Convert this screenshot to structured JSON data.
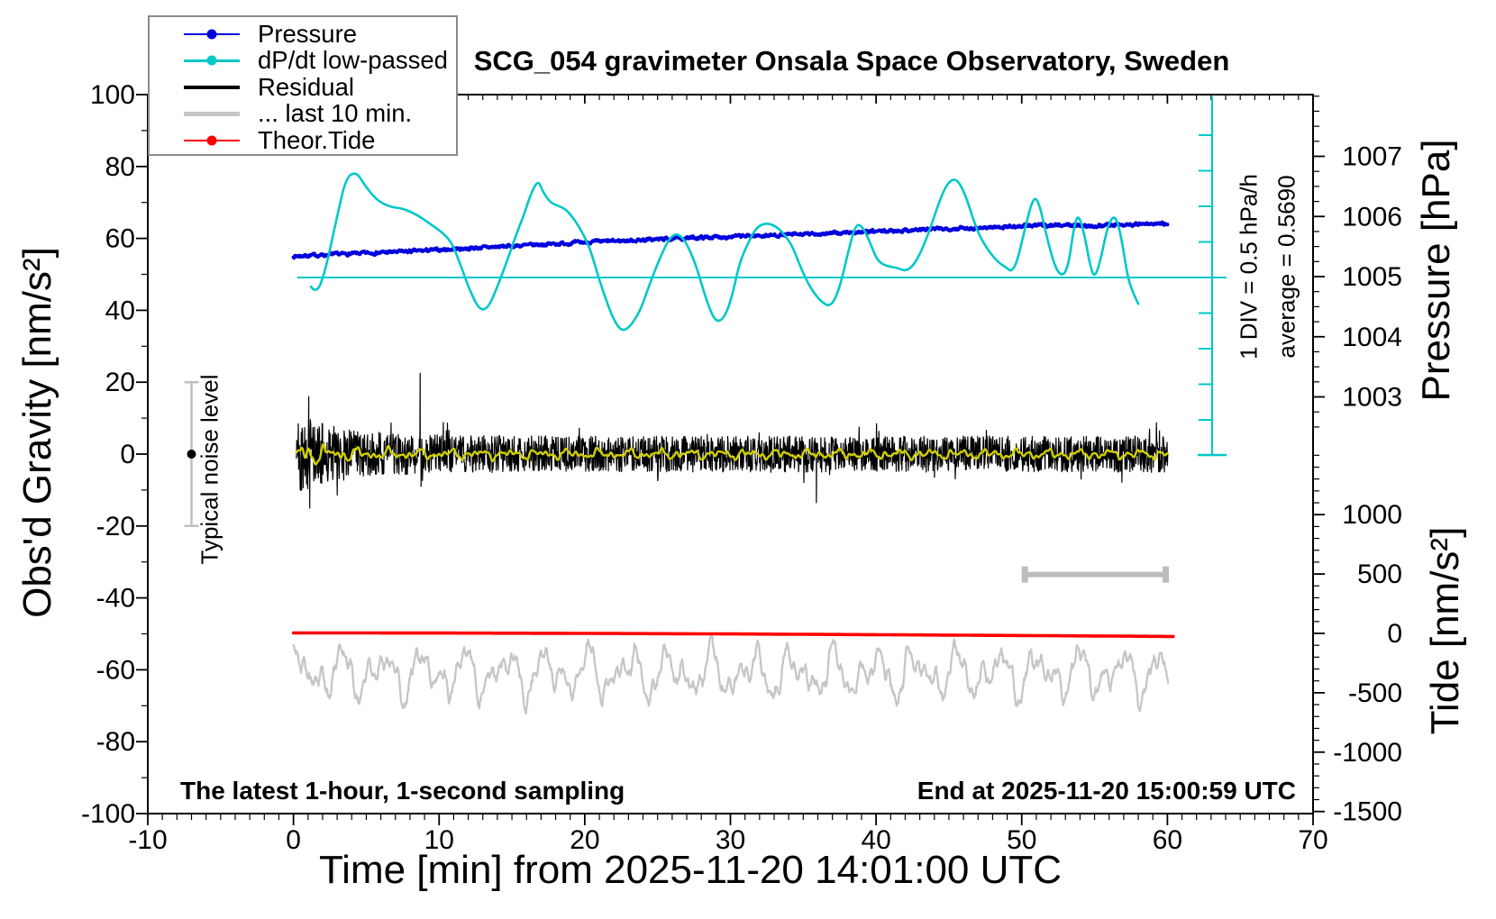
{
  "title": "SCG_054 gravimeter Onsala Space Observatory, Sweden",
  "annotations": {
    "div_note": "1 DIV = 0.5 hPa/h",
    "average_note": "average = 0.5690",
    "noise_level": "Typical noise level",
    "sampling": "The latest 1-hour, 1-second sampling",
    "end_time": "End at 2025-11-20 15:00:59 UTC"
  },
  "legend": {
    "items": [
      {
        "label": "Pressure",
        "color": "#0000dd",
        "marker": "line-dot"
      },
      {
        "label": "dP/dt low-passed",
        "color": "#00c8c8",
        "marker": "line-dot"
      },
      {
        "label": "Residual",
        "color": "#000000",
        "marker": "line-thick"
      },
      {
        "label": "... last 10 min.",
        "color": "#c6c6c6",
        "marker": "line-thick"
      },
      {
        "label": "Theor.Tide",
        "color": "#ff0000",
        "marker": "line-dot"
      }
    ]
  },
  "axes": {
    "x": {
      "title": "Time [min] from 2025-11-20 14:01:00 UTC",
      "range": [
        -10,
        70
      ],
      "majors": [
        -10,
        0,
        10,
        20,
        30,
        40,
        50,
        60,
        70
      ],
      "labels": [
        "-10",
        "0",
        "10",
        "20",
        "30",
        "40",
        "50",
        "60",
        "70"
      ],
      "minor_step": 1
    },
    "gravity": {
      "title": "Obs'd Gravity [nm/s²]",
      "range": [
        -100,
        100
      ],
      "majors": [
        -100,
        -80,
        -60,
        -40,
        -20,
        0,
        20,
        40,
        60,
        80,
        100
      ],
      "labels": [
        "-100",
        "-80",
        "-60",
        "-40",
        "-20",
        "0",
        "20",
        "40",
        "60",
        "80",
        "100"
      ],
      "minor_step": 10
    },
    "pressure": {
      "title": "Pressure [hPa]",
      "majors": [
        1003,
        1004,
        1005,
        1006,
        1007
      ],
      "labels": [
        "1003",
        "1004",
        "1005",
        "1006",
        "1007"
      ],
      "minor_step": 0.25,
      "minor_range": [
        1002.5,
        1008
      ]
    },
    "tide": {
      "title": "Tide [nm/s²]",
      "majors": [
        -1500,
        -1000,
        -500,
        0,
        500,
        1000
      ],
      "labels": [
        "-1500",
        "-1000",
        "-500",
        "0",
        "500",
        "1000"
      ],
      "minor_step": 100,
      "minor_range": [
        -1500,
        1500
      ]
    }
  },
  "chart_data": {
    "type": "line",
    "x_unit": "min",
    "dpdt_average": 0.569,
    "dpdt_div_hpa_per_h": 0.5,
    "noise_marker": {
      "t": -7,
      "v_min": -20,
      "v_max": 20,
      "dot_v": 0
    },
    "last10_marker": {
      "t0": 50,
      "t1": 60.1,
      "v": -33.5
    },
    "series": [
      {
        "name": "Pressure",
        "axis": "pressure",
        "color": "#0000dd",
        "width": 4,
        "render": "interp-noise",
        "noise": 0.016,
        "seed": 7,
        "step": 0.04,
        "points": [
          [
            0,
            1005.34
          ],
          [
            4,
            1005.38
          ],
          [
            8,
            1005.42
          ],
          [
            12,
            1005.47
          ],
          [
            16,
            1005.52
          ],
          [
            20,
            1005.57
          ],
          [
            24,
            1005.61
          ],
          [
            28,
            1005.65
          ],
          [
            32,
            1005.68
          ],
          [
            36,
            1005.71
          ],
          [
            40,
            1005.75
          ],
          [
            44,
            1005.79
          ],
          [
            48,
            1005.82
          ],
          [
            51,
            1005.85
          ],
          [
            53,
            1005.86
          ],
          [
            54.5,
            1005.84
          ],
          [
            56,
            1005.86
          ],
          [
            58,
            1005.87
          ],
          [
            60,
            1005.88
          ]
        ]
      },
      {
        "name": "dP/dt low-passed",
        "axis": "dpdt",
        "color": "#00c8c8",
        "width": 2.6,
        "render": "smooth",
        "points": [
          [
            1.2,
            0.44
          ],
          [
            1.6,
            0.33
          ],
          [
            2.2,
            0.67
          ],
          [
            3.0,
            1.43
          ],
          [
            3.6,
            1.97
          ],
          [
            4.3,
            2.06
          ],
          [
            4.9,
            1.86
          ],
          [
            5.7,
            1.66
          ],
          [
            6.6,
            1.56
          ],
          [
            7.5,
            1.54
          ],
          [
            8.4,
            1.46
          ],
          [
            9.4,
            1.32
          ],
          [
            10.3,
            1.19
          ],
          [
            10.9,
            1.05
          ],
          [
            11.5,
            0.73
          ],
          [
            12.1,
            0.39
          ],
          [
            12.8,
            0.1
          ],
          [
            13.4,
            0.15
          ],
          [
            14.0,
            0.44
          ],
          [
            14.7,
            0.82
          ],
          [
            15.3,
            1.18
          ],
          [
            15.9,
            1.49
          ],
          [
            16.3,
            1.75
          ],
          [
            16.8,
            1.94
          ],
          [
            17.1,
            1.78
          ],
          [
            17.6,
            1.63
          ],
          [
            18.1,
            1.58
          ],
          [
            18.7,
            1.53
          ],
          [
            19.3,
            1.38
          ],
          [
            19.9,
            1.18
          ],
          [
            20.4,
            0.95
          ],
          [
            20.8,
            0.67
          ],
          [
            21.3,
            0.35
          ],
          [
            21.9,
            0.01
          ],
          [
            22.5,
            -0.19
          ],
          [
            23.1,
            -0.13
          ],
          [
            23.8,
            0.1
          ],
          [
            24.2,
            0.33
          ],
          [
            24.7,
            0.61
          ],
          [
            25.2,
            0.86
          ],
          [
            25.7,
            1.08
          ],
          [
            26.2,
            1.19
          ],
          [
            26.7,
            1.14
          ],
          [
            27.2,
            0.96
          ],
          [
            27.7,
            0.7
          ],
          [
            28.2,
            0.35
          ],
          [
            28.7,
            0.06
          ],
          [
            29.1,
            -0.06
          ],
          [
            29.6,
            0.01
          ],
          [
            30.1,
            0.29
          ],
          [
            30.6,
            0.76
          ],
          [
            31.2,
            1.05
          ],
          [
            31.8,
            1.28
          ],
          [
            32.5,
            1.34
          ],
          [
            33.2,
            1.28
          ],
          [
            33.8,
            1.15
          ],
          [
            34.3,
            0.99
          ],
          [
            34.9,
            0.67
          ],
          [
            35.5,
            0.42
          ],
          [
            36.2,
            0.23
          ],
          [
            36.9,
            0.15
          ],
          [
            37.5,
            0.42
          ],
          [
            38.0,
            0.86
          ],
          [
            38.6,
            1.33
          ],
          [
            39.1,
            1.28
          ],
          [
            39.6,
            1.05
          ],
          [
            40.1,
            0.8
          ],
          [
            40.7,
            0.73
          ],
          [
            41.4,
            0.71
          ],
          [
            42.1,
            0.65
          ],
          [
            42.8,
            0.8
          ],
          [
            43.6,
            1.18
          ],
          [
            44.3,
            1.62
          ],
          [
            44.9,
            1.9
          ],
          [
            45.5,
            1.97
          ],
          [
            46.1,
            1.75
          ],
          [
            46.6,
            1.43
          ],
          [
            47.1,
            1.15
          ],
          [
            47.8,
            0.92
          ],
          [
            48.4,
            0.78
          ],
          [
            49.0,
            0.7
          ],
          [
            49.3,
            0.65
          ],
          [
            49.7,
            0.8
          ],
          [
            50.2,
            1.24
          ],
          [
            50.8,
            1.71
          ],
          [
            51.2,
            1.62
          ],
          [
            51.7,
            1.15
          ],
          [
            52.3,
            0.7
          ],
          [
            52.8,
            0.58
          ],
          [
            53.2,
            0.73
          ],
          [
            53.6,
            1.3
          ],
          [
            53.9,
            1.46
          ],
          [
            54.3,
            1.18
          ],
          [
            54.7,
            0.73
          ],
          [
            55.0,
            0.56
          ],
          [
            55.4,
            0.8
          ],
          [
            55.9,
            1.3
          ],
          [
            56.4,
            1.46
          ],
          [
            56.8,
            1.18
          ],
          [
            57.3,
            0.54
          ],
          [
            57.7,
            0.33
          ],
          [
            58.0,
            0.2
          ]
        ]
      },
      {
        "name": "Residual",
        "axis": "gravity",
        "color": "#000000",
        "width": 1.2,
        "render": "noise",
        "seed": 42,
        "step": 0.026,
        "t0": 0.2,
        "t1": 60.05,
        "base_amp": 5.3,
        "start_amp": 7.0,
        "decay": 3.2,
        "spikes": [
          [
            1.05,
            16
          ],
          [
            1.12,
            -15
          ],
          [
            8.7,
            22.5
          ],
          [
            8.76,
            -9
          ],
          [
            35.9,
            -13.5
          ]
        ]
      },
      {
        "name": "Residual low-passed",
        "axis": "gravity",
        "color": "#d0d000",
        "width": 2.4,
        "render": "lp",
        "t0": 0.2,
        "t1": 60.05,
        "step": 0.03,
        "amp": 0.75,
        "start_amp": 1.4,
        "decay": 2.5
      },
      {
        "name": "... last 10 min.",
        "axis": "gravity",
        "color": "#c6c6c6",
        "width": 2.3,
        "render": "osc",
        "seed": 5,
        "t0": 0,
        "t1": 60.05,
        "step": 0.04,
        "center": -61
      },
      {
        "name": "Theor.Tide",
        "axis": "tide",
        "color": "#ff0000",
        "width": 3.6,
        "render": "interp",
        "step": 0.2,
        "points": [
          [
            0,
            4
          ],
          [
            10,
            3
          ],
          [
            20,
            0
          ],
          [
            30,
            -4.5
          ],
          [
            40,
            -11
          ],
          [
            50,
            -18
          ],
          [
            60.4,
            -26
          ]
        ]
      }
    ]
  }
}
